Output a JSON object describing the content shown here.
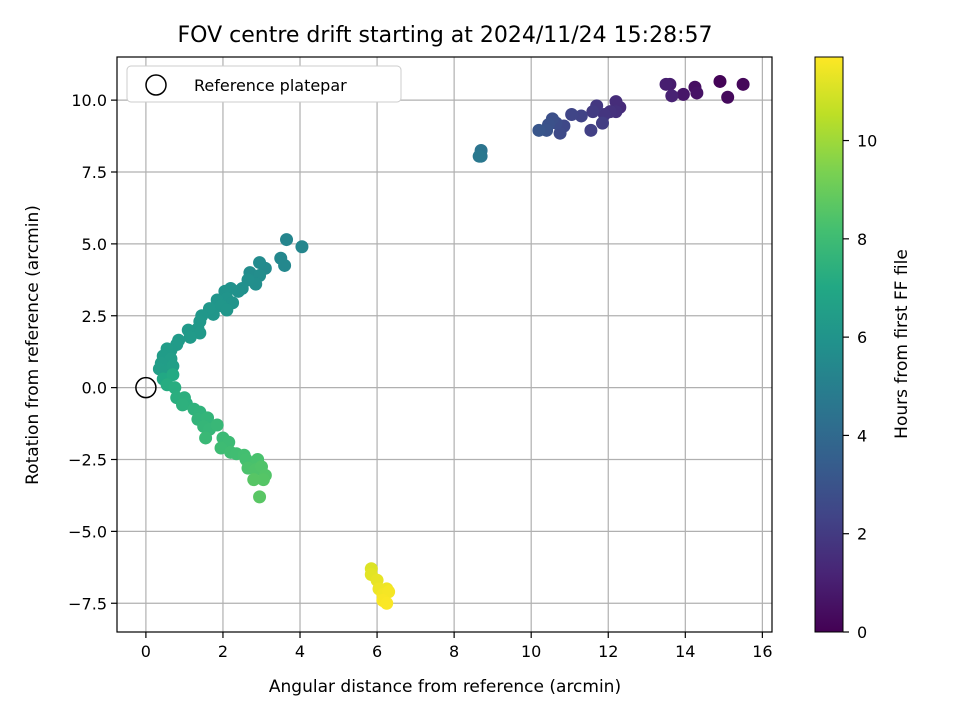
{
  "chart_data": {
    "type": "scatter",
    "title": "FOV centre drift starting at 2024/11/24 15:28:57",
    "xlabel": "Angular distance from reference (arcmin)",
    "ylabel": "Rotation from reference (arcmin)",
    "colorbar_label": "Hours from first FF file",
    "xlim": [
      -0.75,
      16.25
    ],
    "ylim": [
      -8.5,
      11.5
    ],
    "clim": [
      0,
      11.7
    ],
    "xticks": [
      0,
      2,
      4,
      6,
      8,
      10,
      12,
      14,
      16
    ],
    "yticks": [
      -7.5,
      -5.0,
      -2.5,
      0.0,
      2.5,
      5.0,
      7.5,
      10.0
    ],
    "colorbar_ticks": [
      0,
      2,
      4,
      6,
      8,
      10
    ],
    "grid": true,
    "legend": {
      "position": "top-left",
      "entries": [
        "Reference platepar"
      ]
    },
    "reference_point": {
      "x": 0,
      "y": 0
    },
    "points": [
      {
        "x": 14.9,
        "y": 10.65,
        "t": 0.1
      },
      {
        "x": 15.5,
        "y": 10.55,
        "t": 0.2
      },
      {
        "x": 15.1,
        "y": 10.1,
        "t": 0.3
      },
      {
        "x": 14.25,
        "y": 10.45,
        "t": 0.5
      },
      {
        "x": 14.3,
        "y": 10.25,
        "t": 0.6
      },
      {
        "x": 13.95,
        "y": 10.2,
        "t": 0.7
      },
      {
        "x": 13.6,
        "y": 10.55,
        "t": 0.9
      },
      {
        "x": 13.5,
        "y": 10.55,
        "t": 1.0
      },
      {
        "x": 13.65,
        "y": 10.15,
        "t": 1.1
      },
      {
        "x": 12.3,
        "y": 9.75,
        "t": 1.4
      },
      {
        "x": 12.2,
        "y": 9.95,
        "t": 1.5
      },
      {
        "x": 12.2,
        "y": 9.6,
        "t": 1.6
      },
      {
        "x": 12.05,
        "y": 9.6,
        "t": 1.7
      },
      {
        "x": 11.9,
        "y": 9.5,
        "t": 1.8
      },
      {
        "x": 11.7,
        "y": 9.8,
        "t": 1.9
      },
      {
        "x": 11.6,
        "y": 9.6,
        "t": 2.0
      },
      {
        "x": 11.85,
        "y": 9.2,
        "t": 2.1
      },
      {
        "x": 11.55,
        "y": 8.95,
        "t": 2.2
      },
      {
        "x": 11.3,
        "y": 9.45,
        "t": 2.3
      },
      {
        "x": 11.05,
        "y": 9.5,
        "t": 2.4
      },
      {
        "x": 10.85,
        "y": 9.1,
        "t": 2.5
      },
      {
        "x": 10.75,
        "y": 8.85,
        "t": 2.6
      },
      {
        "x": 10.65,
        "y": 9.2,
        "t": 2.7
      },
      {
        "x": 10.55,
        "y": 9.35,
        "t": 2.8
      },
      {
        "x": 10.45,
        "y": 9.15,
        "t": 2.9
      },
      {
        "x": 10.4,
        "y": 8.95,
        "t": 3.0
      },
      {
        "x": 10.2,
        "y": 8.95,
        "t": 3.1
      },
      {
        "x": 8.7,
        "y": 8.25,
        "t": 4.5
      },
      {
        "x": 8.7,
        "y": 8.05,
        "t": 4.6
      },
      {
        "x": 8.65,
        "y": 8.05,
        "t": 4.7
      },
      {
        "x": 3.65,
        "y": 5.15,
        "t": 5.3
      },
      {
        "x": 4.05,
        "y": 4.9,
        "t": 5.35
      },
      {
        "x": 3.5,
        "y": 4.5,
        "t": 5.4
      },
      {
        "x": 3.6,
        "y": 4.25,
        "t": 5.45
      },
      {
        "x": 3.1,
        "y": 4.15,
        "t": 5.5
      },
      {
        "x": 2.95,
        "y": 4.35,
        "t": 5.55
      },
      {
        "x": 2.7,
        "y": 4.0,
        "t": 5.6
      },
      {
        "x": 2.95,
        "y": 3.9,
        "t": 5.65
      },
      {
        "x": 2.85,
        "y": 3.6,
        "t": 5.7
      },
      {
        "x": 2.65,
        "y": 3.75,
        "t": 5.75
      },
      {
        "x": 2.5,
        "y": 3.45,
        "t": 5.8
      },
      {
        "x": 2.4,
        "y": 3.35,
        "t": 5.85
      },
      {
        "x": 2.2,
        "y": 3.45,
        "t": 5.9
      },
      {
        "x": 2.05,
        "y": 3.35,
        "t": 5.95
      },
      {
        "x": 2.1,
        "y": 3.1,
        "t": 6.0
      },
      {
        "x": 2.25,
        "y": 2.95,
        "t": 6.02
      },
      {
        "x": 1.85,
        "y": 3.05,
        "t": 6.05
      },
      {
        "x": 1.95,
        "y": 2.85,
        "t": 6.08
      },
      {
        "x": 2.1,
        "y": 2.7,
        "t": 6.1
      },
      {
        "x": 1.75,
        "y": 2.55,
        "t": 6.12
      },
      {
        "x": 1.65,
        "y": 2.75,
        "t": 6.15
      },
      {
        "x": 1.45,
        "y": 2.5,
        "t": 6.18
      },
      {
        "x": 1.4,
        "y": 2.3,
        "t": 6.2
      },
      {
        "x": 1.35,
        "y": 2.05,
        "t": 6.22
      },
      {
        "x": 1.4,
        "y": 1.9,
        "t": 6.25
      },
      {
        "x": 1.1,
        "y": 2.0,
        "t": 6.28
      },
      {
        "x": 1.15,
        "y": 1.75,
        "t": 6.3
      },
      {
        "x": 0.85,
        "y": 1.65,
        "t": 6.32
      },
      {
        "x": 0.8,
        "y": 1.5,
        "t": 6.35
      },
      {
        "x": 0.65,
        "y": 1.3,
        "t": 6.38
      },
      {
        "x": 0.55,
        "y": 1.35,
        "t": 6.4
      },
      {
        "x": 0.45,
        "y": 1.1,
        "t": 6.42
      },
      {
        "x": 0.65,
        "y": 1.0,
        "t": 6.45
      },
      {
        "x": 0.4,
        "y": 0.85,
        "t": 6.48
      },
      {
        "x": 0.35,
        "y": 0.65,
        "t": 6.5
      },
      {
        "x": 0.5,
        "y": 0.55,
        "t": 6.52
      },
      {
        "x": 0.7,
        "y": 0.75,
        "t": 6.55
      },
      {
        "x": 0.45,
        "y": 0.3,
        "t": 7.0
      },
      {
        "x": 0.7,
        "y": 0.45,
        "t": 7.1
      },
      {
        "x": 0.55,
        "y": 0.1,
        "t": 7.2
      },
      {
        "x": 0.75,
        "y": 0.0,
        "t": 7.25
      },
      {
        "x": 0.8,
        "y": -0.35,
        "t": 7.3
      },
      {
        "x": 1.0,
        "y": -0.35,
        "t": 7.35
      },
      {
        "x": 1.05,
        "y": -0.55,
        "t": 7.4
      },
      {
        "x": 0.95,
        "y": -0.6,
        "t": 7.45
      },
      {
        "x": 1.25,
        "y": -0.75,
        "t": 7.5
      },
      {
        "x": 1.4,
        "y": -0.85,
        "t": 7.55
      },
      {
        "x": 1.35,
        "y": -1.1,
        "t": 7.6
      },
      {
        "x": 1.6,
        "y": -1.05,
        "t": 7.65
      },
      {
        "x": 1.5,
        "y": -1.35,
        "t": 7.7
      },
      {
        "x": 1.65,
        "y": -1.45,
        "t": 7.75
      },
      {
        "x": 1.85,
        "y": -1.3,
        "t": 7.8
      },
      {
        "x": 1.55,
        "y": -1.75,
        "t": 7.85
      },
      {
        "x": 2.0,
        "y": -1.75,
        "t": 7.9
      },
      {
        "x": 2.15,
        "y": -1.9,
        "t": 7.95
      },
      {
        "x": 1.95,
        "y": -2.1,
        "t": 8.0
      },
      {
        "x": 2.2,
        "y": -2.25,
        "t": 8.05
      },
      {
        "x": 2.35,
        "y": -2.3,
        "t": 8.1
      },
      {
        "x": 2.55,
        "y": -2.35,
        "t": 8.15
      },
      {
        "x": 2.6,
        "y": -2.5,
        "t": 8.2
      },
      {
        "x": 2.85,
        "y": -2.6,
        "t": 8.25
      },
      {
        "x": 2.9,
        "y": -2.5,
        "t": 8.3
      },
      {
        "x": 2.65,
        "y": -2.8,
        "t": 8.35
      },
      {
        "x": 2.85,
        "y": -2.85,
        "t": 8.4
      },
      {
        "x": 3.0,
        "y": -2.75,
        "t": 8.45
      },
      {
        "x": 3.1,
        "y": -3.05,
        "t": 8.5
      },
      {
        "x": 3.05,
        "y": -3.2,
        "t": 8.55
      },
      {
        "x": 2.8,
        "y": -3.2,
        "t": 8.6
      },
      {
        "x": 2.95,
        "y": -3.8,
        "t": 8.65
      },
      {
        "x": 5.85,
        "y": -6.3,
        "t": 11.1
      },
      {
        "x": 5.85,
        "y": -6.5,
        "t": 11.2
      },
      {
        "x": 6.0,
        "y": -6.7,
        "t": 11.3
      },
      {
        "x": 6.05,
        "y": -7.0,
        "t": 11.4
      },
      {
        "x": 6.25,
        "y": -7.0,
        "t": 11.45
      },
      {
        "x": 6.15,
        "y": -7.2,
        "t": 11.5
      },
      {
        "x": 6.3,
        "y": -7.1,
        "t": 11.55
      },
      {
        "x": 6.15,
        "y": -7.4,
        "t": 11.6
      },
      {
        "x": 6.25,
        "y": -7.5,
        "t": 11.65
      }
    ]
  }
}
